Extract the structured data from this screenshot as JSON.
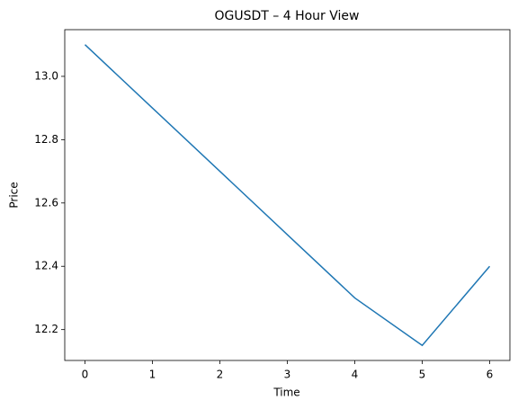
{
  "chart_data": {
    "type": "line",
    "title": "OGUSDT – 4 Hour View",
    "x_label": "Time",
    "y_label": "Price",
    "x": [
      0,
      1,
      2,
      3,
      4,
      5,
      6
    ],
    "series": [
      {
        "color": "#1f77b4",
        "values": [
          13.1,
          12.9,
          12.7,
          12.5,
          12.3,
          12.15,
          12.4
        ]
      }
    ],
    "xlim": [
      -0.3,
      6.3
    ],
    "xticks": [
      0,
      1,
      2,
      3,
      4,
      5,
      6
    ],
    "ylim": [
      12.1025,
      13.1475
    ],
    "yticks": [
      12.2,
      12.4,
      12.6,
      12.8,
      {
        "value": 13.0,
        "label": "13.0"
      }
    ],
    "grid": false
  }
}
